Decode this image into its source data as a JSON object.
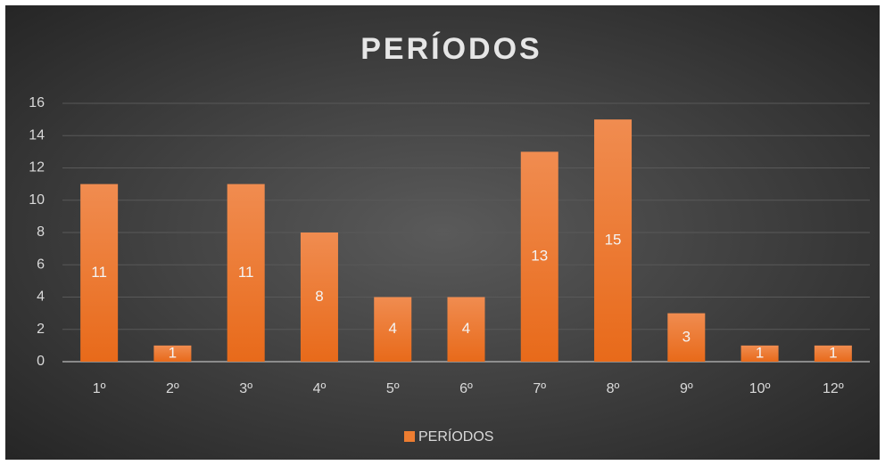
{
  "chart_data": {
    "type": "bar",
    "title": "PERÍODOS",
    "categories": [
      "1º",
      "2º",
      "3º",
      "4º",
      "5º",
      "6º",
      "7º",
      "8º",
      "9º",
      "10º",
      "12º"
    ],
    "series": [
      {
        "name": "PERÍODOS",
        "color": "#ed7d31",
        "values": [
          11,
          1,
          11,
          8,
          4,
          4,
          13,
          15,
          3,
          1,
          1
        ]
      }
    ],
    "ylim": [
      0,
      16
    ],
    "yticks": [
      0,
      2,
      4,
      6,
      8,
      10,
      12,
      14,
      16
    ],
    "grid": true,
    "legend": "bottom"
  }
}
